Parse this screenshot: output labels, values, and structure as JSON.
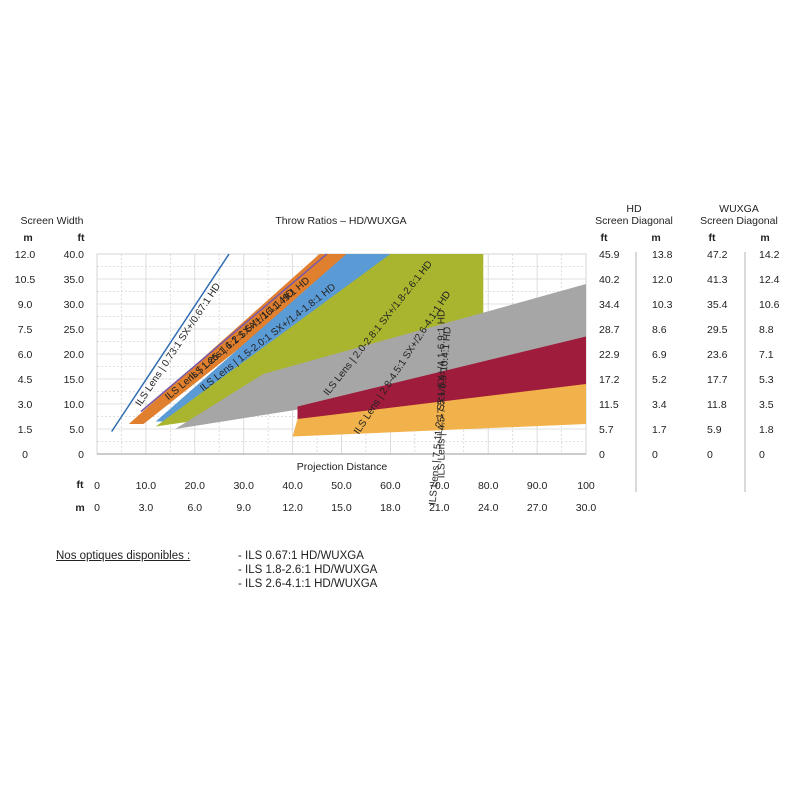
{
  "headers": {
    "screen_width": "Screen Width",
    "hd_line1": "HD",
    "hd_line2": "Screen Diagonal",
    "wuxga_line1": "WUXGA",
    "wuxga_line2": "Screen Diagonal",
    "unit_m": "m",
    "unit_ft": "ft"
  },
  "chart_data": {
    "type": "area",
    "title": "Throw Ratios – HD/WUXGA",
    "xlabel": "Projection Distance",
    "x_unit_labels": [
      "ft",
      "m"
    ],
    "x_ft_range": [
      0,
      100
    ],
    "x_ticks_ft": [
      "0",
      "10.0",
      "20.0",
      "30.0",
      "40.0",
      "50.0",
      "60.0",
      "70.0",
      "80.0",
      "90.0",
      "100"
    ],
    "x_ticks_m": [
      "0",
      "3.0",
      "6.0",
      "9.0",
      "12.0",
      "15.0",
      "18.0",
      "21.0",
      "24.0",
      "27.0",
      "30.0"
    ],
    "y_ft_range": [
      0,
      40
    ],
    "y_ticks_ft": [
      "0",
      "5.0",
      "10.0",
      "15.0",
      "20.0",
      "25.0",
      "30.0",
      "35.0",
      "40.0"
    ],
    "y_ticks_m": [
      "0",
      "1.5",
      "3.0",
      "4.5",
      "6.0",
      "7.5",
      "9.0",
      "10.5",
      "12.0"
    ],
    "right_ticks_ft": [
      "0",
      "5.7",
      "11.5",
      "17.2",
      "22.9",
      "28.7",
      "34.4",
      "40.2",
      "45.9"
    ],
    "hd_diag_m": [
      "0",
      "1.7",
      "3.4",
      "5.2",
      "6.9",
      "8.6",
      "10.3",
      "12.0",
      "13.8"
    ],
    "wuxga_diag_ft": [
      "0",
      "5.9",
      "11.8",
      "17.7",
      "23.6",
      "29.5",
      "35.4",
      "41.3",
      "47.2"
    ],
    "wuxga_diag_m": [
      "0",
      "1.8",
      "3.5",
      "5.3",
      "7.1",
      "8.8",
      "10.6",
      "12.4",
      "14.2"
    ],
    "grid": true,
    "series": [
      {
        "name": "ILS Lens | 0.73:1 SX+/0.67:1 HD",
        "kind": "line",
        "color": "#2f6db0",
        "points": [
          [
            3,
            4.5
          ],
          [
            27,
            40
          ]
        ]
      },
      {
        "name": "ILS Lens | 1.2:1 SX+/1.1:1 HD",
        "kind": "line",
        "color": "#7a5aa8",
        "points": [
          [
            9,
            8.5
          ],
          [
            47,
            40
          ]
        ]
      },
      {
        "name": "ILS Lens | 1.25-1.6:1 SX+/1.16-1.49:1 HD",
        "kind": "band",
        "color": "#e07f2e",
        "polygon": [
          [
            6.5,
            6
          ],
          [
            9.5,
            6
          ],
          [
            53.5,
            40
          ],
          [
            45.5,
            40
          ]
        ]
      },
      {
        "name": "ILS Lens | 1.5-2.0:1 SX+/1.4-1.8:1 HD",
        "kind": "band",
        "color": "#5b9bd5",
        "polygon": [
          [
            12,
            6.5
          ],
          [
            14,
            6.5
          ],
          [
            63,
            40
          ],
          [
            51,
            40
          ]
        ]
      },
      {
        "name": "ILS Lens | 2.0-2.8:1 SX+/1.8-2.6:1 HD",
        "kind": "band",
        "color": "#a9b52e",
        "polygon": [
          [
            12,
            5.5
          ],
          [
            79,
            15
          ],
          [
            79,
            40
          ],
          [
            60,
            40
          ]
        ]
      },
      {
        "name": "ILS Lens | 2.8-4.5:1 SX+/2.6-4.1:1 HD",
        "kind": "band",
        "color": "#a6a6a6",
        "polygon": [
          [
            16,
            5
          ],
          [
            100,
            18
          ],
          [
            100,
            34
          ],
          [
            34,
            16
          ]
        ]
      },
      {
        "name": "ILS Lens | 4.5-7.5:1 SX+/4.1-6.9:1 HD",
        "kind": "band",
        "color": "#a01c3c",
        "polygon": [
          [
            41,
            5
          ],
          [
            100,
            10
          ],
          [
            100,
            23.5
          ],
          [
            41,
            9.5
          ]
        ]
      },
      {
        "name": "ILS Lens | 7.5-11.2:1 SX+/6.9-10.4:1 HD",
        "kind": "band",
        "color": "#f2b24b",
        "polygon": [
          [
            40,
            3.5
          ],
          [
            100,
            6
          ],
          [
            100,
            14
          ],
          [
            41,
            7
          ]
        ]
      }
    ]
  },
  "notes": {
    "title": "Nos optiques disponibles :",
    "items": [
      "- ILS 0.67:1     HD/WUXGA",
      "- ILS 1.8-2.6:1 HD/WUXGA",
      "- ILS 2.6-4.1:1 HD/WUXGA"
    ]
  }
}
